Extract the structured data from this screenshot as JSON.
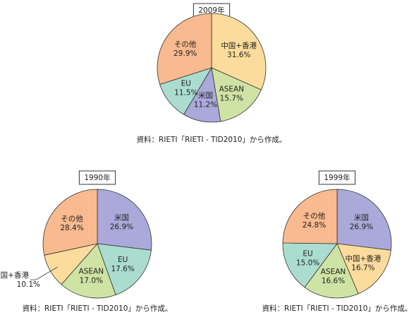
{
  "chart_data": [
    {
      "type": "pie",
      "title": "2009年",
      "categories": [
        "中国+香港",
        "ASEAN",
        "米国",
        "EU",
        "その他"
      ],
      "values": [
        31.6,
        15.7,
        11.2,
        11.5,
        29.9
      ],
      "value_labels": [
        "31.6%",
        "15.7%",
        "11.2%",
        "11.5%",
        "29.9%"
      ],
      "colors": [
        "#fbdc9c",
        "#cfe3a4",
        "#aba8da",
        "#abdcd0",
        "#f8ba8e"
      ],
      "source": "資料：RIETI「RIETI - TID2010」から作成。"
    },
    {
      "type": "pie",
      "title": "1990年",
      "categories": [
        "米国",
        "EU",
        "ASEAN",
        "中国+香港",
        "その他"
      ],
      "values": [
        26.9,
        17.6,
        17.0,
        10.1,
        28.4
      ],
      "value_labels": [
        "26.9%",
        "17.6%",
        "17.0%",
        "10.1%",
        "28.4%"
      ],
      "colors": [
        "#aba8da",
        "#abdcd0",
        "#cfe3a4",
        "#fbdc9c",
        "#f8ba8e"
      ],
      "source": "資料：RIETI「RIETI - TID2010」から作成。"
    },
    {
      "type": "pie",
      "title": "1999年",
      "categories": [
        "米国",
        "中国+香港",
        "ASEAN",
        "EU",
        "その他"
      ],
      "values": [
        26.9,
        16.7,
        16.6,
        15.0,
        24.8
      ],
      "value_labels": [
        "26.9%",
        "16.7%",
        "16.6%",
        "15.0%",
        "24.8%"
      ],
      "colors": [
        "#aba8da",
        "#fbdc9c",
        "#cfe3a4",
        "#abdcd0",
        "#f8ba8e"
      ],
      "source": "資料：RIETI「RIETI - TID2010」から作成。"
    }
  ]
}
